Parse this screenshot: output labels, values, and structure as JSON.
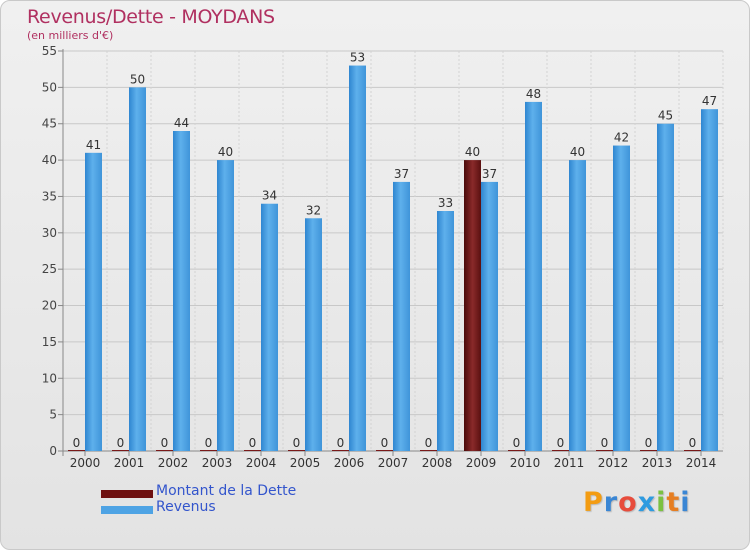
{
  "header": {
    "title": "Revenus/Dette - MOYDANS",
    "subtitle": "(en milliers d'€)"
  },
  "brand": {
    "letters": [
      "P",
      "r",
      "o",
      "x",
      "i",
      "t",
      "i"
    ],
    "colors": [
      "#f39c12",
      "#3a86d4",
      "#e74c3c",
      "#2e9be0",
      "#7bc142",
      "#e67e22",
      "#3a86d4"
    ]
  },
  "chart_data": {
    "type": "bar",
    "title": "Revenus/Dette - MOYDANS",
    "subtitle": "(en milliers d'€)",
    "xlabel": "",
    "ylabel": "",
    "categories": [
      "2000",
      "2001",
      "2002",
      "2003",
      "2004",
      "2005",
      "2006",
      "2007",
      "2008",
      "2009",
      "2010",
      "2011",
      "2012",
      "2013",
      "2014"
    ],
    "series": [
      {
        "name": "Montant de la Dette",
        "color": "#7a1a1a",
        "values": [
          0,
          0,
          0,
          0,
          0,
          0,
          0,
          0,
          0,
          40,
          0,
          0,
          0,
          0,
          0
        ]
      },
      {
        "name": "Revenus",
        "color": "#4ea3e4",
        "values": [
          41,
          50,
          44,
          40,
          34,
          32,
          53,
          37,
          33,
          37,
          48,
          40,
          42,
          45,
          47
        ]
      }
    ],
    "ylim": [
      0,
      55
    ],
    "yticks": [
      0,
      5,
      10,
      15,
      20,
      25,
      30,
      35,
      40,
      45,
      50,
      55
    ],
    "grid": true,
    "legend_position": "bottom-left"
  }
}
